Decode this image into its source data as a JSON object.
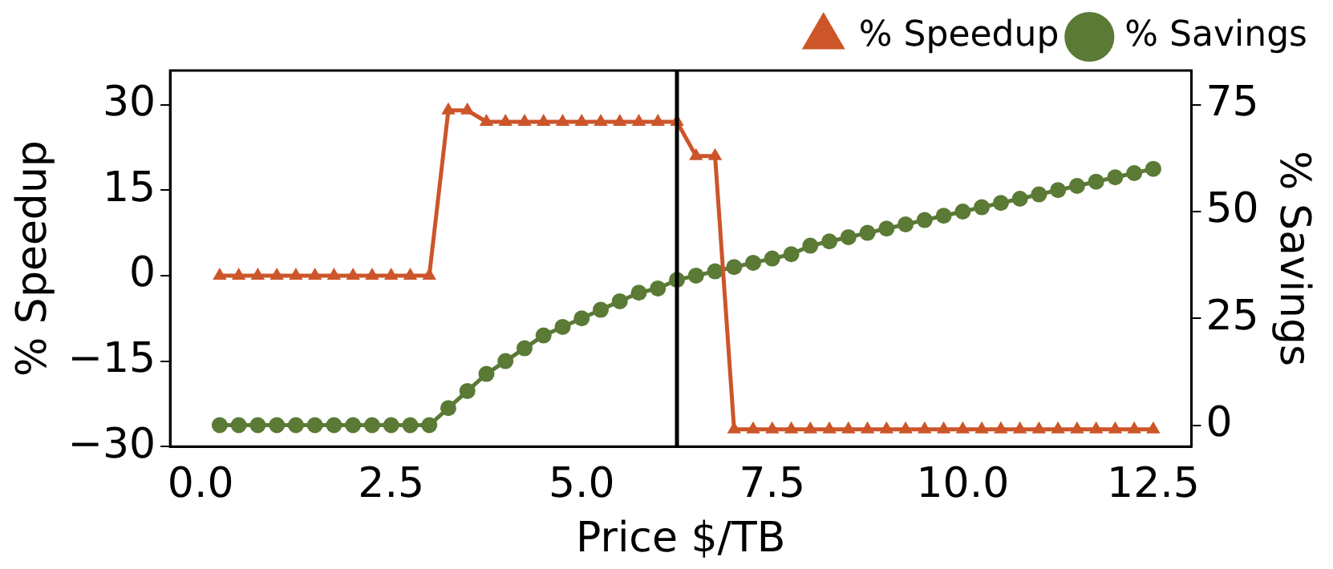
{
  "chart_data": {
    "type": "line",
    "xlabel": "Price $/TB",
    "ylabel": "% Speedup",
    "y2label": "% Savings",
    "x": [
      0.25,
      0.5,
      0.75,
      1.0,
      1.25,
      1.5,
      1.75,
      2.0,
      2.25,
      2.5,
      2.75,
      3.0,
      3.25,
      3.5,
      3.75,
      4.0,
      4.25,
      4.5,
      4.75,
      5.0,
      5.25,
      5.5,
      5.75,
      6.0,
      6.25,
      6.5,
      6.75,
      7.0,
      7.25,
      7.5,
      7.75,
      8.0,
      8.25,
      8.5,
      8.75,
      9.0,
      9.25,
      9.5,
      9.75,
      10.0,
      10.25,
      10.5,
      10.75,
      11.0,
      11.25,
      11.5,
      11.75,
      12.0,
      12.25,
      12.5
    ],
    "series": [
      {
        "name": "% Speedup",
        "color": "#cc5529",
        "marker": "triangle",
        "values": [
          0,
          0,
          0,
          0,
          0,
          0,
          0,
          0,
          0,
          0,
          0,
          0,
          29,
          29,
          27,
          27,
          27,
          27,
          27,
          27,
          27,
          27,
          27,
          27,
          27,
          21,
          21,
          -27,
          -27,
          -27,
          -27,
          -27,
          -27,
          -27,
          -27,
          -27,
          -27,
          -27,
          -27,
          -27,
          -27,
          -27,
          -27,
          -27,
          -27,
          -27,
          -27,
          -27,
          -27,
          -27
        ]
      },
      {
        "name": "% Savings",
        "color": "#5a7a35",
        "marker": "circle",
        "axis": "y2",
        "values": [
          0,
          0,
          0,
          0,
          0,
          0,
          0,
          0,
          0,
          0,
          0,
          0,
          4,
          8,
          12,
          15,
          18,
          21,
          23,
          25,
          27,
          29,
          31,
          32,
          34,
          35,
          36,
          37,
          38,
          39,
          40,
          42,
          43,
          44,
          45,
          46,
          47,
          48,
          49,
          50,
          51,
          52,
          53,
          54,
          55,
          56,
          57,
          58,
          59,
          60
        ]
      }
    ],
    "xlim": [
      -0.4,
      13.0
    ],
    "xticks": [
      {
        "value": 0,
        "label": "0.0"
      },
      {
        "value": 2.5,
        "label": "2.5"
      },
      {
        "value": 5,
        "label": "5.0"
      },
      {
        "value": 7.5,
        "label": "7.5"
      },
      {
        "value": 10,
        "label": "10.0"
      },
      {
        "value": 12.5,
        "label": "12.5"
      }
    ],
    "ylim": [
      -30,
      36
    ],
    "yticks": [
      -30,
      -15,
      0,
      15,
      30
    ],
    "y2lim": [
      -5,
      83
    ],
    "y2ticks": [
      0,
      25,
      50,
      75
    ],
    "ref_lines": [
      {
        "axis": "x",
        "value": 6.25,
        "color": "#000000"
      }
    ],
    "legend": "top right",
    "grid": false,
    "line_style": "solid"
  }
}
